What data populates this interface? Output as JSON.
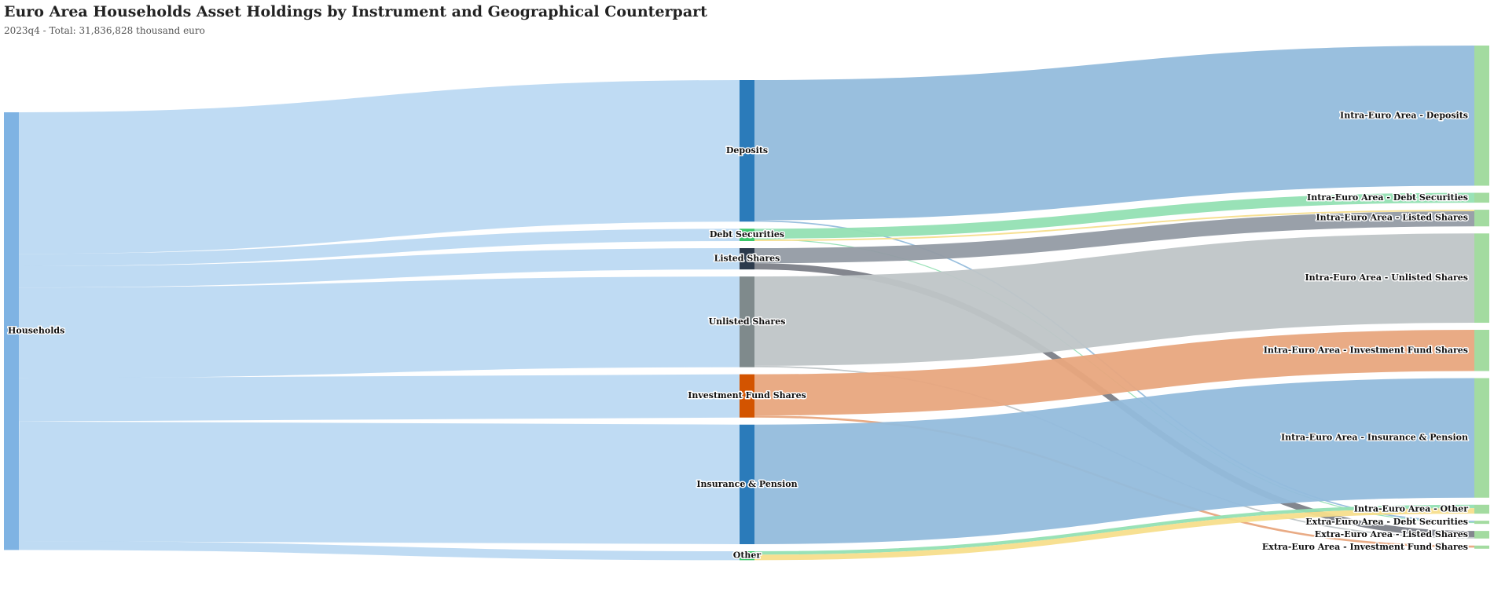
{
  "title": "Euro Area Households Asset Holdings by Instrument and Geographical Counterpart",
  "subtitle": "2023q4 - Total: 31,836,828 thousand euro",
  "nodes": [
    {
      "id": "households",
      "label": "Households",
      "color": "#7fb3e3"
    },
    {
      "id": "deposits",
      "label": "Deposits",
      "color": "#2b7bba"
    },
    {
      "id": "debt",
      "label": "Debt Securities",
      "color": "#3cc86a"
    },
    {
      "id": "listed",
      "label": "Listed Shares",
      "color": "#2c3a4c"
    },
    {
      "id": "unlisted",
      "label": "Unlisted Shares",
      "color": "#7f8a8c"
    },
    {
      "id": "funds",
      "label": "Investment Fund Shares",
      "color": "#d35400"
    },
    {
      "id": "insurance",
      "label": "Insurance & Pension",
      "color": "#2b7bba"
    },
    {
      "id": "other",
      "label": "Other",
      "color": "#3cc86a"
    },
    {
      "id": "ie_deposits",
      "label": "Intra-Euro Area - Deposits",
      "color": "#a3dba0"
    },
    {
      "id": "ie_debt",
      "label": "Intra-Euro Area - Debt Securities",
      "color": "#a3dba0"
    },
    {
      "id": "ie_listed",
      "label": "Intra-Euro Area - Listed Shares",
      "color": "#a3dba0"
    },
    {
      "id": "ie_unlisted",
      "label": "Intra-Euro Area - Unlisted Shares",
      "color": "#a3dba0"
    },
    {
      "id": "ie_funds",
      "label": "Intra-Euro Area - Investment Fund Shares",
      "color": "#a3dba0"
    },
    {
      "id": "ie_insurance",
      "label": "Intra-Euro Area - Insurance & Pension",
      "color": "#a3dba0"
    },
    {
      "id": "ie_other",
      "label": "Intra-Euro Area - Other",
      "color": "#a3dba0"
    },
    {
      "id": "ee_debt",
      "label": "Extra-Euro Area - Debt Securities",
      "color": "#a3dba0"
    },
    {
      "id": "ee_listed",
      "label": "Extra-Euro Area - Listed Shares",
      "color": "#a3dba0"
    },
    {
      "id": "ee_funds",
      "label": "Extra-Euro Area - Investment Fund Shares",
      "color": "#a3dba0"
    }
  ],
  "chart_data": {
    "type": "sankey",
    "title": "Euro Area Households Asset Holdings by Instrument and Geographical Counterpart",
    "subtitle": "2023q4 - Total: 31,836,828 thousand euro",
    "units": "thousand euro",
    "total": 31836828,
    "links": [
      {
        "source": "households",
        "target": "deposits",
        "value": 10300000,
        "color": "#bcd9f2"
      },
      {
        "source": "households",
        "target": "debt",
        "value": 900000,
        "color": "#bcd9f2"
      },
      {
        "source": "households",
        "target": "listed",
        "value": 1550000,
        "color": "#bcd9f2"
      },
      {
        "source": "households",
        "target": "unlisted",
        "value": 6600000,
        "color": "#bcd9f2"
      },
      {
        "source": "households",
        "target": "funds",
        "value": 3150000,
        "color": "#bcd9f2"
      },
      {
        "source": "households",
        "target": "insurance",
        "value": 8700000,
        "color": "#bcd9f2"
      },
      {
        "source": "households",
        "target": "other",
        "value": 650000,
        "color": "#bcd9f2"
      },
      {
        "source": "deposits",
        "target": "ie_deposits",
        "value": 10200000,
        "color": "#93bcdc"
      },
      {
        "source": "deposits",
        "target": "ee_debt",
        "value": 100000,
        "color": "#93bcdc"
      },
      {
        "source": "debt",
        "target": "ie_debt",
        "value": 720000,
        "color": "#93e0b3"
      },
      {
        "source": "debt",
        "target": "ee_debt",
        "value": 70000,
        "color": "#93e0b3"
      },
      {
        "source": "debt",
        "target": "ie_listed",
        "value": 110000,
        "color": "#f7de8c"
      },
      {
        "source": "listed",
        "target": "ie_listed",
        "value": 1100000,
        "color": "#949ba4"
      },
      {
        "source": "listed",
        "target": "ee_listed",
        "value": 450000,
        "color": "#7c8088"
      },
      {
        "source": "unlisted",
        "target": "ie_unlisted",
        "value": 6500000,
        "color": "#bfc5c7"
      },
      {
        "source": "unlisted",
        "target": "ee_listed",
        "value": 100000,
        "color": "#bfc5c7"
      },
      {
        "source": "funds",
        "target": "ie_funds",
        "value": 3000000,
        "color": "#e8a67e"
      },
      {
        "source": "funds",
        "target": "ee_funds",
        "value": 150000,
        "color": "#e8a67e"
      },
      {
        "source": "insurance",
        "target": "ie_insurance",
        "value": 8700000,
        "color": "#93bcdc"
      },
      {
        "source": "other",
        "target": "ie_other",
        "value": 250000,
        "color": "#93e0b3"
      },
      {
        "source": "other",
        "target": "ie_other",
        "value": 400000,
        "color": "#f7de8c"
      }
    ]
  }
}
